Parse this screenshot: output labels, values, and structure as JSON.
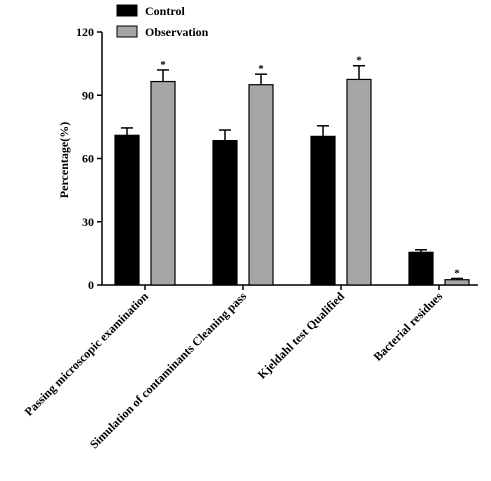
{
  "chart_data": {
    "type": "bar",
    "categories": [
      "Passing microscopic examination",
      "Simulation of contaminants Cleaning pass",
      "Kjeldahl test Qualified",
      "Bacterial residues"
    ],
    "series": [
      {
        "name": "Control",
        "values": [
          71,
          68.5,
          70.5,
          15.5
        ],
        "errors": [
          3.5,
          5,
          5,
          1.2
        ],
        "color": "#000000"
      },
      {
        "name": "Observation",
        "values": [
          96.5,
          95,
          97.5,
          2.5
        ],
        "errors": [
          5.5,
          5,
          6.5,
          0.6
        ],
        "color": "#a6a6a6"
      }
    ],
    "significance": [
      "*",
      "*",
      "*",
      "*"
    ],
    "xlabel": "",
    "ylabel": "Percentage(%)",
    "ylim": [
      0,
      120
    ],
    "yticks": [
      "0",
      "30",
      "60",
      "90",
      "120"
    ],
    "legend_position": "top-left",
    "grid": false
  }
}
